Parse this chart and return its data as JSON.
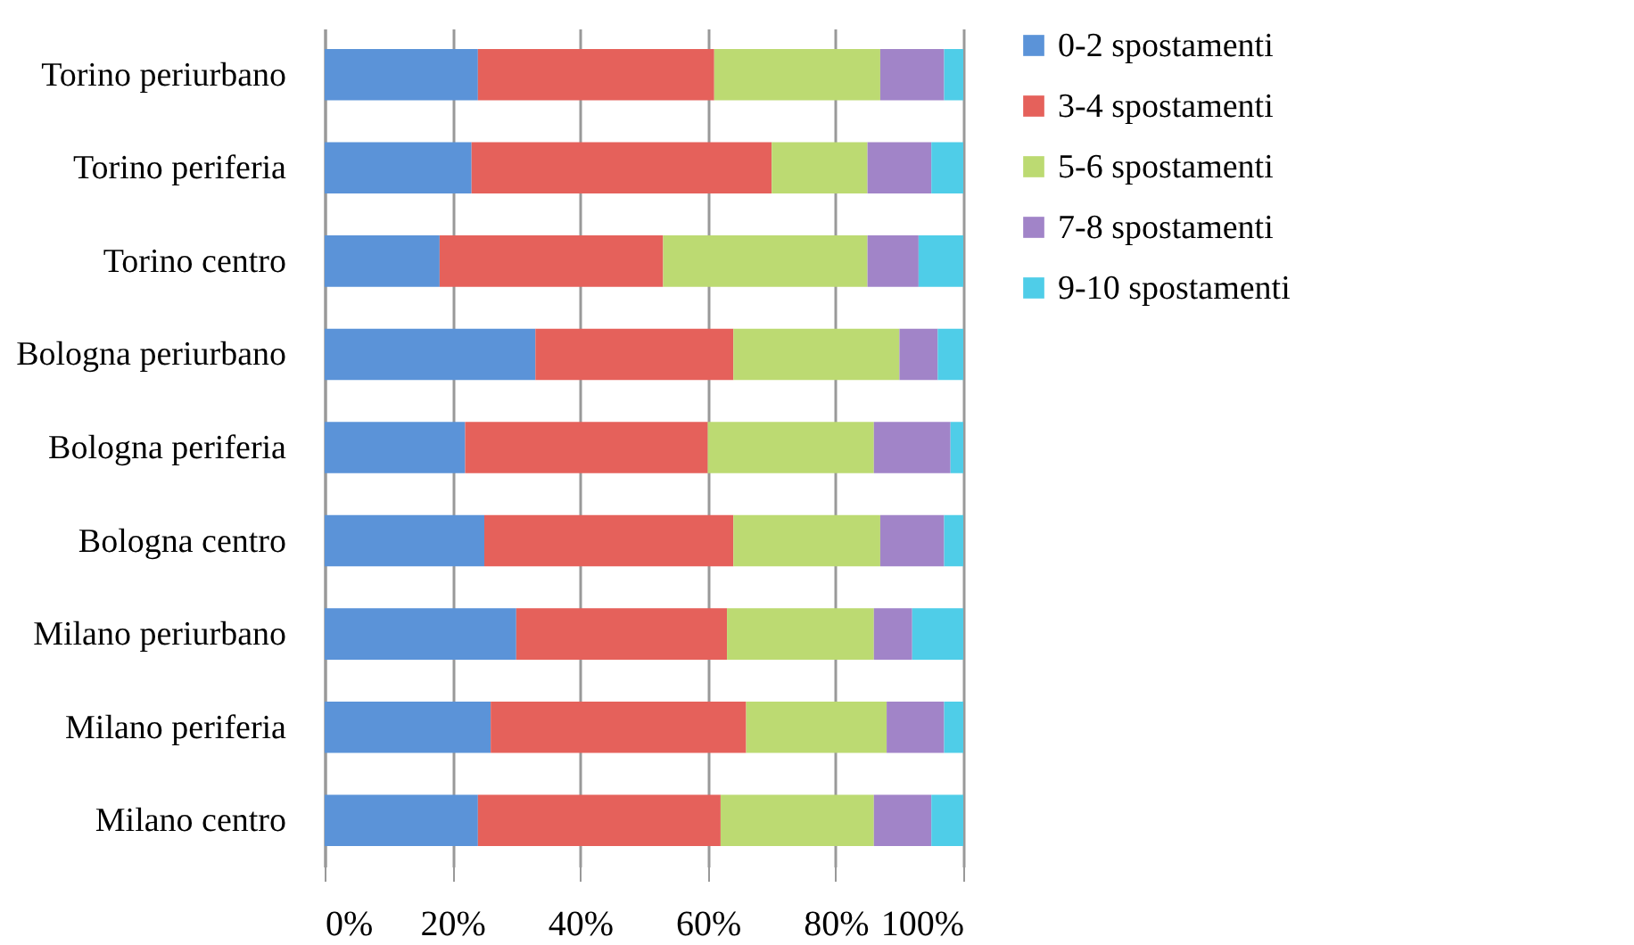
{
  "chart_data": {
    "type": "bar",
    "orientation": "horizontal",
    "stacked": true,
    "categories": [
      "Torino periurbano",
      "Torino periferia",
      "Torino centro",
      "Bologna periurbano",
      "Bologna periferia",
      "Bologna centro",
      "Milano periurbano",
      "Milano periferia",
      "Milano centro"
    ],
    "series": [
      {
        "name": "0-2 spostamenti",
        "color": "#5b93d8",
        "values": [
          24,
          23,
          18,
          33,
          22,
          25,
          30,
          26,
          24
        ]
      },
      {
        "name": "3-4 spostamenti",
        "color": "#e5615b",
        "values": [
          37,
          47,
          35,
          31,
          38,
          39,
          33,
          40,
          38
        ]
      },
      {
        "name": "5-6 spostamenti",
        "color": "#bcda72",
        "values": [
          26,
          15,
          32,
          26,
          26,
          23,
          23,
          22,
          24
        ]
      },
      {
        "name": "7-8 spostamenti",
        "color": "#a184c8",
        "values": [
          10,
          10,
          8,
          6,
          12,
          10,
          6,
          9,
          9
        ]
      },
      {
        "name": "9-10 spostamenti",
        "color": "#4fcde8",
        "values": [
          3,
          5,
          7,
          4,
          2,
          3,
          8,
          3,
          5
        ]
      }
    ],
    "xlim": [
      0,
      100
    ],
    "xticks": [
      {
        "value": 0,
        "label": "0%"
      },
      {
        "value": 20,
        "label": "20%"
      },
      {
        "value": 40,
        "label": "40%"
      },
      {
        "value": 60,
        "label": "60%"
      },
      {
        "value": 80,
        "label": "80%"
      },
      {
        "value": 100,
        "label": "100%"
      }
    ],
    "grid": "x",
    "legend": "right"
  }
}
